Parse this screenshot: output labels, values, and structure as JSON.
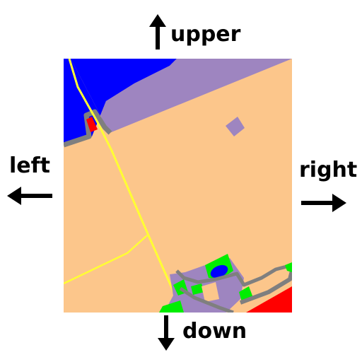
{
  "labels": {
    "upper": "upper",
    "left": "left",
    "right": "right",
    "down": "down"
  },
  "icons": {
    "up": "arrow-up-icon",
    "left": "arrow-left-icon",
    "right": "arrow-right-icon",
    "down": "arrow-down-icon"
  },
  "colors": {
    "farmland": "#fcc68b",
    "water": "#0000ff",
    "residential": "#9e85c0",
    "road_major": "#ffff33",
    "road_minor": "#7f7f7f",
    "park": "#00ee00",
    "commercial": "#ff0000",
    "arrow": "#000000",
    "text": "#000000"
  }
}
